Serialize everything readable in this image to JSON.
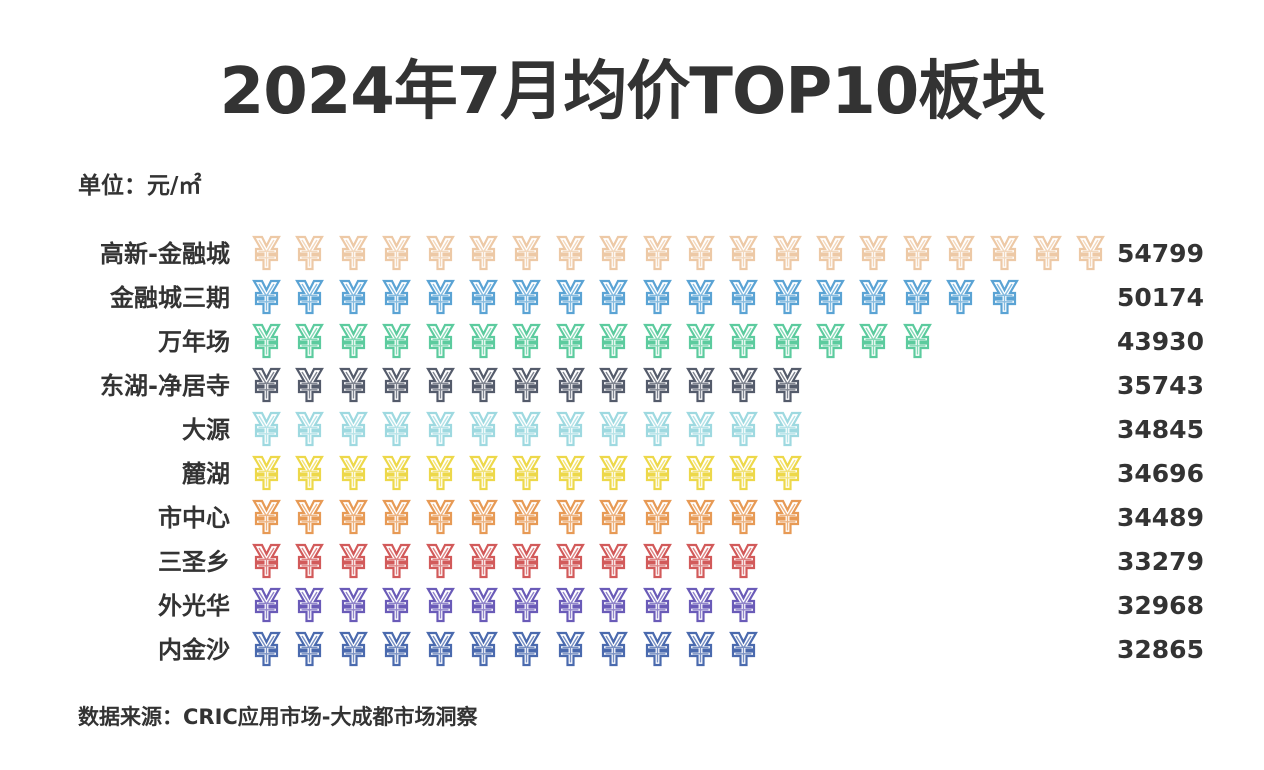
{
  "title": "2024年7月均价TOP10板块",
  "unit_label": "单位：元/㎡",
  "source": "数据来源：CRIC应用市场-大成都市场洞察",
  "icon": "yen-icon",
  "rows": [
    {
      "label": "高新-金融城",
      "value": "54799",
      "icon_count": 20,
      "color": "#EDC9A6"
    },
    {
      "label": "金融城三期",
      "value": "50174",
      "icon_count": 18,
      "color": "#5AA3D4"
    },
    {
      "label": "万年场",
      "value": "43930",
      "icon_count": 16,
      "color": "#5CCB9E"
    },
    {
      "label": "东湖-净居寺",
      "value": "35743",
      "icon_count": 13,
      "color": "#545B6B"
    },
    {
      "label": "大源",
      "value": "34845",
      "icon_count": 13,
      "color": "#9ED9E0"
    },
    {
      "label": "麓湖",
      "value": "34696",
      "icon_count": 13,
      "color": "#EDD84A"
    },
    {
      "label": "市中心",
      "value": "34489",
      "icon_count": 13,
      "color": "#E79A55"
    },
    {
      "label": "三圣乡",
      "value": "33279",
      "icon_count": 12,
      "color": "#D25A5A"
    },
    {
      "label": "外光华",
      "value": "32968",
      "icon_count": 12,
      "color": "#6A5BB8"
    },
    {
      "label": "内金沙",
      "value": "32865",
      "icon_count": 12,
      "color": "#4A6AAE"
    }
  ],
  "chart_data": {
    "type": "bar",
    "subtype": "pictorial (yen-icon pictograph bars, horizontal)",
    "title": "2024年7月均价TOP10板块",
    "unit": "元/㎡",
    "xlabel": "",
    "ylabel": "",
    "orientation": "horizontal",
    "categories": [
      "高新-金融城",
      "金融城三期",
      "万年场",
      "东湖-净居寺",
      "大源",
      "麓湖",
      "市中心",
      "三圣乡",
      "外光华",
      "内金沙"
    ],
    "values": [
      54799,
      50174,
      43930,
      35743,
      34845,
      34696,
      34489,
      33279,
      32968,
      32865
    ],
    "icon_counts": [
      20,
      18,
      16,
      13,
      13,
      13,
      13,
      12,
      12,
      12
    ],
    "colors": [
      "#EDC9A6",
      "#5AA3D4",
      "#5CCB9E",
      "#545B6B",
      "#9ED9E0",
      "#EDD84A",
      "#E79A55",
      "#D25A5A",
      "#6A5BB8",
      "#4A6AAE"
    ],
    "data_labels": true,
    "grid": false,
    "legend": "none",
    "source": "数据来源：CRIC应用市场-大成都市场洞察"
  }
}
